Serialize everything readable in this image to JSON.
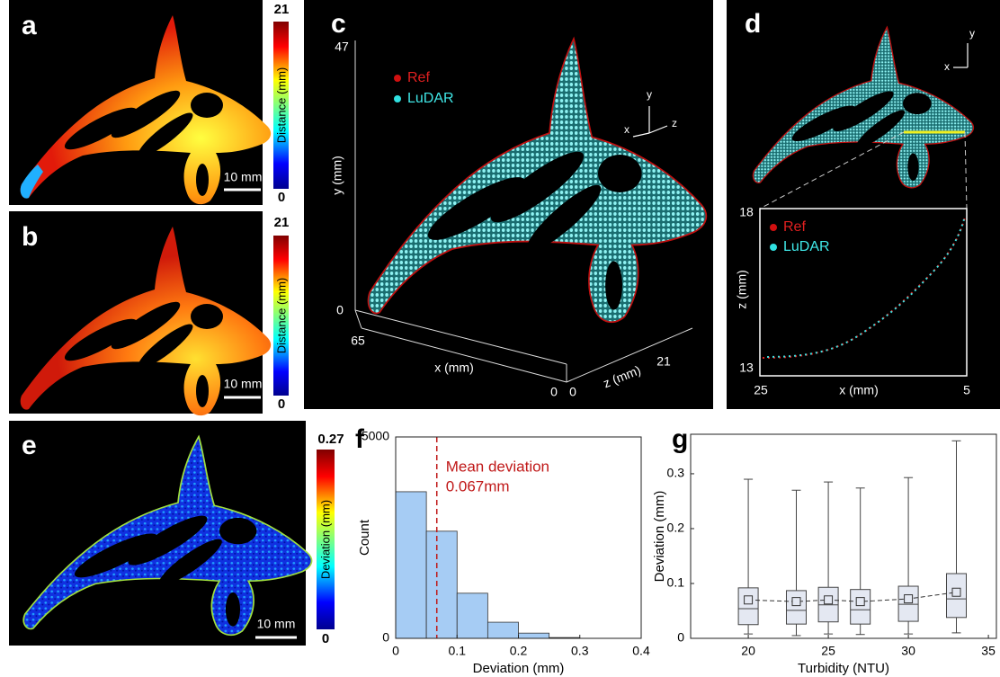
{
  "panels": {
    "a": {
      "label": "a",
      "colorbar": {
        "title": "Distance (mm)",
        "max": "21",
        "min": "0"
      },
      "scale_bar": "10 mm"
    },
    "b": {
      "label": "b",
      "colorbar": {
        "title": "Distance (mm)",
        "max": "21",
        "min": "0"
      },
      "scale_bar": "10 mm"
    },
    "c": {
      "label": "c",
      "legend": [
        "Ref",
        "LuDAR"
      ],
      "y_axis": {
        "label": "y (mm)",
        "ticks": [
          "47",
          "0"
        ]
      },
      "x_axis": {
        "label": "x (mm)",
        "ticks": [
          "65",
          "0"
        ]
      },
      "z_axis": {
        "label": "z (mm)",
        "ticks": [
          "21",
          "0"
        ]
      },
      "orientation": [
        "y",
        "x",
        "z"
      ]
    },
    "d": {
      "label": "d",
      "orientation": [
        "y",
        "x"
      ],
      "inset": {
        "legend": [
          "Ref",
          "LuDAR"
        ],
        "y_label": "z (mm)",
        "y_ticks": [
          "18",
          "13"
        ],
        "x_label": "x (mm)",
        "x_ticks": [
          "25",
          "5"
        ]
      }
    },
    "e": {
      "label": "e",
      "colorbar": {
        "title": "Deviation (mm)",
        "max": "0.27",
        "min": "0"
      },
      "scale_bar": "10 mm"
    }
  },
  "chart_data": [
    {
      "type": "histogram",
      "label": "f",
      "bins": [
        0,
        0.05,
        0.1,
        0.15,
        0.2,
        0.25,
        0.3
      ],
      "counts": [
        3640,
        2660,
        1120,
        400,
        130,
        20
      ],
      "color": "#a6ccf4",
      "xlim": [
        0,
        0.4
      ],
      "xticks": [
        0,
        0.1,
        0.2,
        0.3,
        0.4
      ],
      "ylim": [
        0,
        5000
      ],
      "yticks": [
        0,
        5000
      ],
      "xlabel": "Deviation (mm)",
      "ylabel": "Count",
      "mean": 0.067,
      "annotation": [
        "Mean deviation",
        "0.067mm"
      ]
    },
    {
      "type": "box",
      "label": "g",
      "x": [
        20,
        23,
        25,
        27,
        30,
        33
      ],
      "min": [
        0.008,
        0.005,
        0.008,
        0.007,
        0.008,
        0.01
      ],
      "q1": [
        0.025,
        0.026,
        0.03,
        0.026,
        0.031,
        0.038
      ],
      "median": [
        0.054,
        0.051,
        0.061,
        0.052,
        0.062,
        0.072
      ],
      "q3": [
        0.092,
        0.087,
        0.093,
        0.089,
        0.095,
        0.118
      ],
      "max": [
        0.29,
        0.27,
        0.285,
        0.274,
        0.293,
        0.36
      ],
      "mean": [
        0.07,
        0.067,
        0.07,
        0.067,
        0.072,
        0.084
      ],
      "color": "#e4e8f2",
      "xlim": [
        16.4,
        35.5
      ],
      "xticks": [
        20,
        25,
        30,
        35
      ],
      "ylim": [
        0,
        0.372
      ],
      "yticks": [
        0,
        0.1,
        0.2,
        0.3
      ],
      "xlabel": "Turbidity (NTU)",
      "ylabel": "Deviation (mm)"
    }
  ]
}
